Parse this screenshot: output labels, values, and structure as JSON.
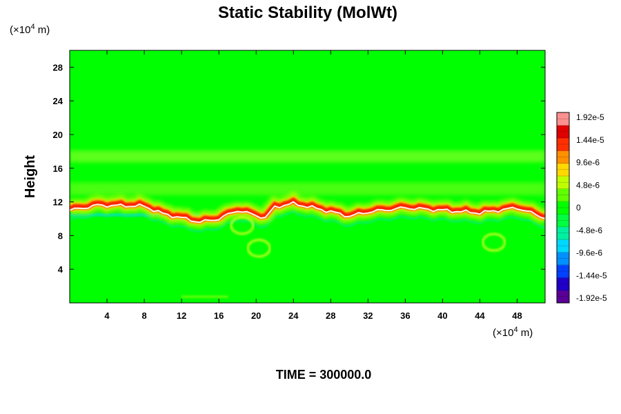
{
  "chart_data": {
    "type": "heatmap",
    "title": "Static Stability (MolWt)",
    "ylabel": "Height",
    "xunit": {
      "prefix": "(×10",
      "exp": "4",
      "suffix": " m)"
    },
    "yunit": {
      "prefix": "(×10",
      "exp": "4",
      "suffix": " m)"
    },
    "xlim": [
      0,
      51
    ],
    "ylim": [
      0,
      30
    ],
    "xticks": [
      "4",
      "8",
      "12",
      "16",
      "20",
      "24",
      "28",
      "32",
      "36",
      "40",
      "44",
      "48"
    ],
    "xtick_values": [
      4,
      8,
      12,
      16,
      20,
      24,
      28,
      32,
      36,
      40,
      44,
      48
    ],
    "yticks": [
      "28",
      "24",
      "20",
      "16",
      "12",
      "8",
      "4"
    ],
    "ytick_values": [
      28,
      24,
      20,
      16,
      12,
      8,
      4
    ],
    "colorbar": {
      "labels": [
        "1.92e-5",
        "1.44e-5",
        "9.6e-6",
        "4.8e-6",
        "0",
        "-4.8e-6",
        "-9.6e-6",
        "-1.44e-5",
        "-1.92e-5"
      ],
      "values": [
        1.92e-05,
        1.44e-05,
        9.6e-06,
        4.8e-06,
        0,
        -4.8e-06,
        -9.6e-06,
        -1.44e-05,
        -1.92e-05
      ],
      "vmin": -1.92e-05,
      "vmax": 1.92e-05,
      "colors_low_to_high": [
        "#5a0096",
        "#2000c8",
        "#0040ff",
        "#0090ff",
        "#00d8ff",
        "#00f0a0",
        "#00ff40",
        "#00ff00",
        "#60ff00",
        "#c0ff00",
        "#ffd800",
        "#ff9000",
        "#ff3000",
        "#e00000",
        "#ff9090"
      ]
    },
    "field": {
      "background_value": 0,
      "stable_band": {
        "description_points_x": [
          0,
          3,
          8,
          10,
          14,
          16,
          18,
          21,
          22,
          24,
          27,
          30,
          32,
          36,
          40,
          44,
          48,
          51
        ],
        "center_y": [
          11.2,
          11.8,
          11.7,
          10.8,
          9.8,
          10.2,
          11.2,
          10.3,
          11.6,
          12.0,
          11.3,
          10.5,
          11.0,
          11.5,
          11.2,
          10.9,
          11.5,
          10.3
        ],
        "peak_value": 1.92e-05
      },
      "upper_band_y": 17.5,
      "lower_negative_band_y": 10.2
    }
  },
  "footer": {
    "time_text": "TIME = 300000.0"
  }
}
